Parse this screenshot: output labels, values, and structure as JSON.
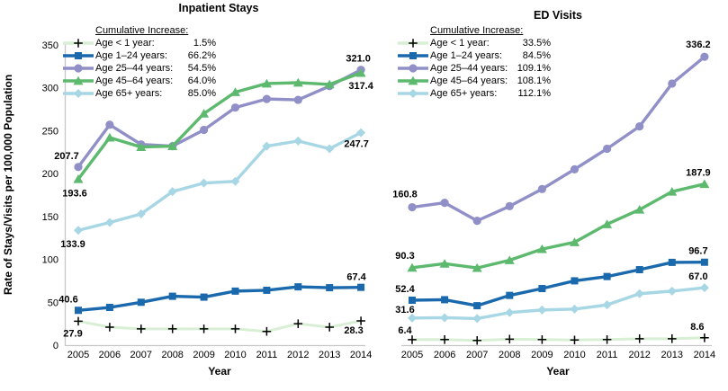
{
  "colors": {
    "age_lt1": "#d9efd5",
    "age_1_24": "#1b69ad",
    "age_25_44": "#918fc7",
    "age_45_64": "#5cb96e",
    "age_65plus": "#a7d6e4",
    "plus_marker": "#000000",
    "axis_line": "#c6c6c6",
    "text": "#000000"
  },
  "chart_data": [
    {
      "type": "line",
      "title": "Inpatient Stays",
      "xlabel": "Year",
      "ylabel": "Rate of Stays/Visits per 100,000 Population",
      "legend_title": "Cumulative Increase:",
      "legend_position": "upper-left",
      "grid": false,
      "x": [
        "2005",
        "2006",
        "2007",
        "2008",
        "2009",
        "2010",
        "2011",
        "2012",
        "2013",
        "2014"
      ],
      "ylim": [
        0,
        350
      ],
      "y_tick_step": 50,
      "series": [
        {
          "name": "Age < 1 year:",
          "cumulative_increase": "1.5%",
          "marker": "plus",
          "color_key": "age_lt1",
          "first_label": "27.9",
          "last_label": "28.3",
          "values": [
            27.9,
            21,
            19,
            19,
            19,
            19,
            16,
            25,
            21,
            28.3
          ]
        },
        {
          "name": "Age 1–24 years:",
          "cumulative_increase": "66.2%",
          "marker": "square",
          "color_key": "age_1_24",
          "first_label": "40.6",
          "last_label": "67.4",
          "values": [
            40.6,
            44,
            50,
            57,
            56,
            63,
            64,
            68,
            67,
            67.4
          ]
        },
        {
          "name": "Age 25–44 years:",
          "cumulative_increase": "54.5%",
          "marker": "circle",
          "color_key": "age_25_44",
          "first_label": "207.7",
          "last_label": "321.0",
          "values": [
            207.7,
            257,
            234,
            232,
            251,
            277,
            287,
            286,
            302,
            321.0
          ]
        },
        {
          "name": "Age 45–64 years:",
          "cumulative_increase": "64.0%",
          "marker": "triangle",
          "color_key": "age_45_64",
          "first_label": "193.6",
          "last_label": "317.4",
          "values": [
            193.6,
            242,
            231,
            232,
            270,
            295,
            305,
            306,
            304,
            317.4
          ]
        },
        {
          "name": "Age 65+ years:",
          "cumulative_increase": "85.0%",
          "marker": "diamond",
          "color_key": "age_65plus",
          "first_label": "133.9",
          "last_label": "247.7",
          "values": [
            133.9,
            143,
            153,
            179,
            189,
            191,
            232,
            238,
            229,
            247.7
          ]
        }
      ]
    },
    {
      "type": "line",
      "title": "ED Visits",
      "xlabel": "Year",
      "ylabel": "Rate of Stays/Visits per 100,000 Population",
      "legend_title": "Cumulative Increase:",
      "legend_position": "upper-left",
      "grid": false,
      "x": [
        "2005",
        "2006",
        "2007",
        "2008",
        "2009",
        "2010",
        "2011",
        "2012",
        "2013",
        "2014"
      ],
      "ylim": [
        0,
        350
      ],
      "y_tick_step": 50,
      "series": [
        {
          "name": "Age < 1 year:",
          "cumulative_increase": "33.5%",
          "marker": "plus",
          "color_key": "age_lt1",
          "first_label": "6.4",
          "last_label": "8.6",
          "values": [
            6.4,
            6.5,
            5.5,
            7,
            6.5,
            6,
            6.5,
            7.5,
            7.5,
            8.6
          ]
        },
        {
          "name": "Age 1–24 years:",
          "cumulative_increase": "84.5%",
          "marker": "square",
          "color_key": "age_1_24",
          "first_label": "52.4",
          "last_label": "96.7",
          "values": [
            52.4,
            53,
            46,
            58,
            66,
            75,
            80,
            88,
            96.5,
            96.7
          ]
        },
        {
          "name": "Age 25–44 years:",
          "cumulative_increase": "109.1%",
          "marker": "circle",
          "color_key": "age_25_44",
          "first_label": "160.8",
          "last_label": "336.2",
          "values": [
            160.8,
            166,
            145,
            162,
            182,
            205,
            229,
            255,
            305,
            336.2
          ]
        },
        {
          "name": "Age 45–64 years:",
          "cumulative_increase": "108.1%",
          "marker": "triangle",
          "color_key": "age_45_64",
          "first_label": "90.3",
          "last_label": "187.9",
          "values": [
            90.3,
            95,
            90,
            99,
            112,
            120,
            141,
            158,
            179,
            187.9
          ]
        },
        {
          "name": "Age 65+ years:",
          "cumulative_increase": "112.1%",
          "marker": "diamond",
          "color_key": "age_65plus",
          "first_label": "31.6",
          "last_label": "67.0",
          "values": [
            31.6,
            32,
            31,
            38,
            41,
            42,
            47,
            60,
            63,
            67.0
          ]
        }
      ]
    }
  ]
}
